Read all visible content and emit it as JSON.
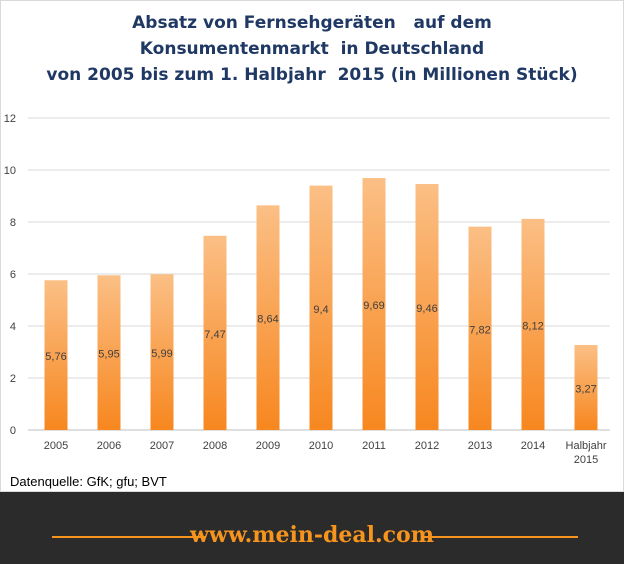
{
  "title_lines": [
    "Absatz von Fernsehgeräten   auf dem",
    "Konsumentenmarkt  in Deutschland",
    "von 2005 bis zum 1. Halbjahr  2015 (in Millionen Stück)"
  ],
  "source": "Datenquelle: GfK; gfu; BVT",
  "footer_url": "www.mein-deal.com",
  "colors": {
    "bar_top": "#fbbf85",
    "bar_bottom": "#f7871f",
    "title": "#1f3864",
    "footer_bg": "#2b2b2b",
    "footer_accent": "#f7941d"
  },
  "chart_data": {
    "type": "bar",
    "categories": [
      "2005",
      "2006",
      "2007",
      "2008",
      "2009",
      "2010",
      "2011",
      "2012",
      "2013",
      "2014",
      "Halbjahr\n2015"
    ],
    "values": [
      5.76,
      5.95,
      5.99,
      7.47,
      8.64,
      9.4,
      9.69,
      9.46,
      7.82,
      8.12,
      3.27
    ],
    "data_labels": [
      "5,76",
      "5,95",
      "5,99",
      "7,47",
      "8,64",
      "9,4",
      "9,69",
      "9,46",
      "7,82",
      "8,12",
      "3,27"
    ],
    "yticks": [
      "0",
      "2",
      "4",
      "6",
      "8",
      "10",
      "12"
    ],
    "ylim": [
      0,
      12
    ],
    "grid": true,
    "legend": "none"
  }
}
